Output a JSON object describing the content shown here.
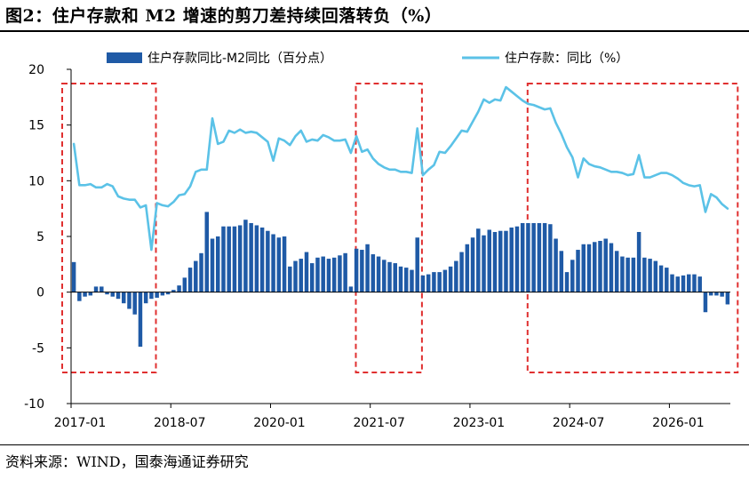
{
  "title": "图2：住户存款和 M2 增速的剪刀差持续回落转负（%）",
  "source": "资料来源：WIND，国泰海通证券研究",
  "colors": {
    "bar": "#1f5aa6",
    "line": "#5bc2e7",
    "highlight_box": "#e03030",
    "axis": "#000000"
  },
  "chart_data": {
    "type": "bar+line",
    "x_tick_labels": [
      "2017-01",
      "2018-07",
      "2020-01",
      "2021-07",
      "2023-01",
      "2024-07",
      "2026-01"
    ],
    "ylim": [
      -10,
      20
    ],
    "y_ticks": [
      -10,
      -5,
      0,
      5,
      10,
      15,
      20
    ],
    "legend_position": "top",
    "series": [
      {
        "name": "住户存款同比-M2同比（百分点）",
        "kind": "bar",
        "values": [
          2.7,
          -0.8,
          -0.4,
          -0.3,
          0.5,
          0.5,
          -0.2,
          -0.4,
          -0.6,
          -1.0,
          -1.5,
          -2.0,
          -4.9,
          -1.0,
          -0.6,
          -0.5,
          -0.3,
          -0.2,
          0.2,
          0.6,
          1.3,
          2.2,
          2.8,
          3.5,
          7.2,
          4.8,
          5.0,
          5.9,
          5.9,
          5.9,
          6.0,
          6.5,
          6.2,
          6.0,
          5.8,
          5.5,
          5.2,
          4.9,
          5.0,
          2.3,
          2.8,
          3.0,
          3.6,
          2.6,
          3.1,
          3.2,
          3.0,
          3.1,
          3.3,
          3.5,
          0.5,
          3.9,
          3.8,
          4.3,
          3.4,
          3.2,
          2.9,
          2.7,
          2.6,
          2.3,
          2.2,
          2.0,
          4.9,
          1.5,
          1.6,
          1.8,
          1.8,
          2.0,
          2.3,
          2.8,
          3.6,
          4.3,
          4.9,
          5.7,
          5.1,
          5.6,
          5.4,
          5.5,
          5.5,
          5.8,
          5.9,
          6.2,
          6.2,
          6.2,
          6.2,
          6.2,
          6.1,
          4.8,
          3.7,
          1.8,
          2.9,
          3.8,
          4.3,
          4.3,
          4.5,
          4.6,
          4.8,
          4.4,
          3.7,
          3.2,
          3.1,
          3.1,
          5.4,
          3.1,
          3.0,
          2.8,
          2.4,
          2.2,
          1.6,
          1.4,
          1.5,
          1.6,
          1.6,
          1.4,
          -1.8,
          -0.3,
          -0.3,
          -0.4,
          -1.1
        ]
      },
      {
        "name": "住户存款：同比（%）",
        "kind": "line",
        "values": [
          13.3,
          9.6,
          9.6,
          9.7,
          9.4,
          9.4,
          9.7,
          9.5,
          8.6,
          8.4,
          8.3,
          8.3,
          7.6,
          7.8,
          3.8,
          8.0,
          7.8,
          7.7,
          8.1,
          8.7,
          8.8,
          9.5,
          10.8,
          11.0,
          11.0,
          15.6,
          13.3,
          13.5,
          14.5,
          14.3,
          14.6,
          14.3,
          14.4,
          14.3,
          13.9,
          13.5,
          11.8,
          13.8,
          13.6,
          13.2,
          14.0,
          14.5,
          13.5,
          13.7,
          13.6,
          14.1,
          13.9,
          13.6,
          13.6,
          13.7,
          12.5,
          14.0,
          12.6,
          12.8,
          12.0,
          11.5,
          11.2,
          11.0,
          11.0,
          10.8,
          10.8,
          10.7,
          14.7,
          10.5,
          11.0,
          11.4,
          12.6,
          12.5,
          13.1,
          13.8,
          14.5,
          14.4,
          15.3,
          16.2,
          17.3,
          17.0,
          17.3,
          17.2,
          18.4,
          18.0,
          17.6,
          17.2,
          16.9,
          16.8,
          16.6,
          16.4,
          16.5,
          15.2,
          14.2,
          13.0,
          12.1,
          10.3,
          12.0,
          11.5,
          11.3,
          11.2,
          11.0,
          10.8,
          10.8,
          10.7,
          10.5,
          10.6,
          12.3,
          10.3,
          10.3,
          10.5,
          10.7,
          10.7,
          10.5,
          10.2,
          9.8,
          9.6,
          9.5,
          9.6,
          7.2,
          8.8,
          8.5,
          7.9,
          7.5
        ]
      }
    ],
    "annotations": [
      "red dashed box around 2017-01 to 2018-04",
      "red dashed box around 2021-05 to 2022-03",
      "red dashed box around 2023-11 to 2026-02"
    ]
  }
}
